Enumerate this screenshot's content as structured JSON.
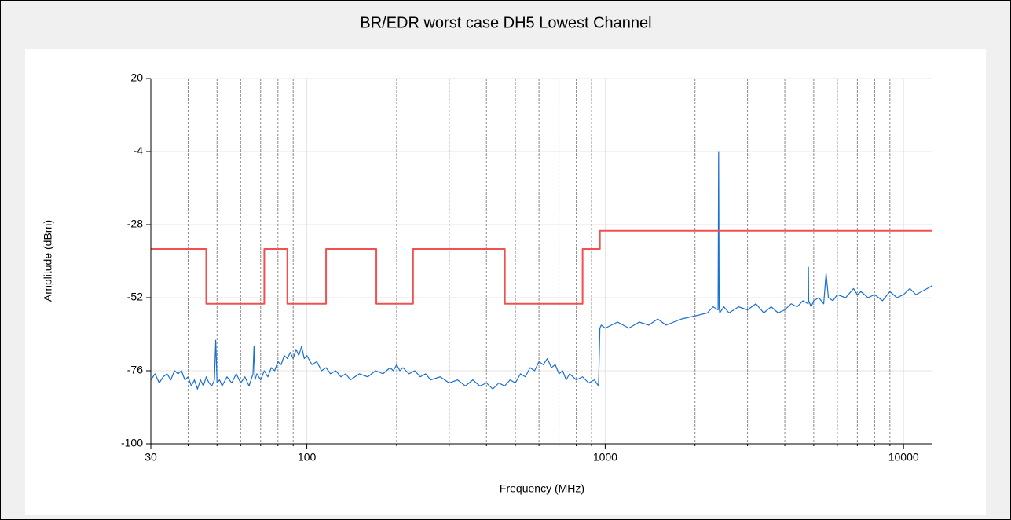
{
  "chart_data": {
    "type": "line",
    "title": "BR/EDR worst case DH5 Lowest Channel",
    "xlabel": "Frequency (MHz)",
    "ylabel": "Amplitude (dBm)",
    "log_x": true,
    "grid": true,
    "xlim": [
      30,
      12500
    ],
    "xticks": [
      30,
      100,
      1000,
      10000
    ],
    "minor_xticks": [
      40,
      50,
      60,
      70,
      80,
      90,
      200,
      300,
      400,
      500,
      600,
      700,
      800,
      900,
      2000,
      3000,
      4000,
      5000,
      6000,
      7000,
      8000,
      9000
    ],
    "ylim": [
      -100,
      20
    ],
    "yticks": [
      20,
      -4,
      -28,
      -52,
      -76,
      -100
    ],
    "series": [
      {
        "color": "#1a6fd0",
        "x": [
          30,
          31,
          32,
          33,
          34,
          35,
          36,
          37,
          38,
          39,
          40,
          41,
          42,
          43,
          44,
          45,
          46,
          47,
          48,
          49,
          49.5,
          50,
          51,
          52,
          54,
          56,
          58,
          60,
          62,
          64,
          66,
          66.5,
          67,
          68,
          70,
          72,
          74,
          76,
          78,
          80,
          82,
          84,
          86,
          88,
          90,
          92,
          94,
          96,
          98,
          100,
          104,
          108,
          112,
          116,
          120,
          125,
          130,
          135,
          140,
          150,
          160,
          170,
          180,
          190,
          195,
          200,
          205,
          210,
          220,
          230,
          240,
          250,
          260,
          280,
          300,
          320,
          340,
          360,
          380,
          400,
          420,
          440,
          460,
          480,
          500,
          520,
          540,
          560,
          580,
          600,
          620,
          640,
          660,
          680,
          700,
          720,
          740,
          760,
          800,
          840,
          880,
          920,
          950,
          960,
          970,
          1000,
          1100,
          1200,
          1300,
          1400,
          1500,
          1600,
          1800,
          2000,
          2200,
          2300,
          2390,
          2400,
          2410,
          2420,
          2500,
          2600,
          2800,
          3000,
          3200,
          3400,
          3600,
          3800,
          4000,
          4200,
          4400,
          4600,
          4790,
          4800,
          4810,
          4900,
          5000,
          5200,
          5400,
          5500,
          5600,
          5800,
          6000,
          6400,
          6800,
          7000,
          7200,
          7600,
          8000,
          8500,
          9000,
          9500,
          10000,
          10500,
          11000,
          11500,
          12000,
          12500
        ],
        "values": [
          -79,
          -77,
          -80,
          -78,
          -77,
          -79,
          -76,
          -77,
          -76,
          -79,
          -78,
          -81,
          -79,
          -82,
          -79,
          -81,
          -78,
          -80,
          -81,
          -79,
          -66,
          -80,
          -79,
          -81,
          -78,
          -80,
          -77,
          -80,
          -78,
          -81,
          -77,
          -68,
          -79,
          -77,
          -79,
          -76,
          -78,
          -75,
          -76,
          -73,
          -74,
          -71,
          -72,
          -70,
          -72,
          -69,
          -71,
          -68,
          -72,
          -71,
          -74,
          -73,
          -76,
          -75,
          -77,
          -76,
          -78,
          -77,
          -79,
          -77,
          -78,
          -76,
          -77,
          -75,
          -76,
          -74,
          -76,
          -75,
          -77,
          -76,
          -78,
          -77,
          -79,
          -78,
          -80,
          -79,
          -81,
          -79,
          -81,
          -80,
          -82,
          -80,
          -81,
          -79,
          -80,
          -77,
          -78,
          -75,
          -76,
          -73,
          -74,
          -72,
          -75,
          -74,
          -77,
          -76,
          -79,
          -77,
          -79,
          -78,
          -80,
          -79,
          -81,
          -62,
          -61,
          -62,
          -60,
          -62,
          -60,
          -61,
          -59,
          -61,
          -59,
          -58,
          -57,
          -55,
          -56,
          -4,
          -55,
          -57,
          -55,
          -57,
          -55,
          -56,
          -54,
          -57,
          -55,
          -57,
          -56,
          -54,
          -55,
          -53,
          -54,
          -42,
          -53,
          -55,
          -53,
          -52,
          -54,
          -44,
          -52,
          -53,
          -51,
          -52,
          -49,
          -51,
          -50,
          -52,
          -51,
          -53,
          -50,
          -52,
          -51,
          -49,
          -51,
          -50,
          -49,
          -48
        ]
      },
      {
        "color": "#f05050",
        "x": [
          30,
          46,
          46,
          72,
          72,
          86,
          86,
          116,
          116,
          171,
          171,
          227,
          227,
          461,
          461,
          840,
          840,
          960,
          960,
          12500
        ],
        "values": [
          -36,
          -36,
          -54,
          -54,
          -36,
          -36,
          -54,
          -54,
          -36,
          -36,
          -54,
          -54,
          -36,
          -36,
          -54,
          -54,
          -36,
          -36,
          -30,
          -30
        ]
      }
    ]
  }
}
